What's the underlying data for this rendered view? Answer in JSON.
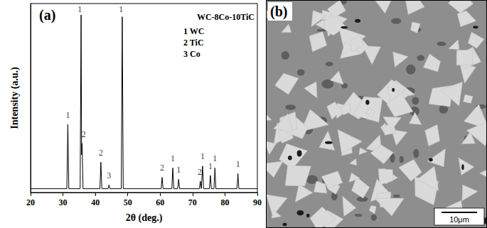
{
  "chart_data": {
    "type": "line",
    "title": "(a)",
    "subtitle": "WC-8Co-10TiC",
    "key": [
      "1 WC",
      "2 TiC",
      "3 Co"
    ],
    "x_label": "2θ (deg.)",
    "y_label": "Intensity (a.u.)",
    "x": [
      20,
      31.2,
      31.5,
      31.8,
      35.3,
      35.6,
      35.75,
      35.9,
      36.2,
      41.4,
      41.7,
      42.0,
      43.9,
      44.2,
      44.5,
      48.0,
      48.3,
      48.6,
      60.3,
      60.6,
      60.9,
      63.6,
      63.9,
      64.2,
      65.4,
      65.7,
      66.0,
      72.1,
      72.4,
      72.7,
      72.8,
      73.1,
      73.4,
      75.2,
      75.5,
      75.8,
      76.6,
      76.9,
      77.2,
      83.7,
      84.0,
      84.3,
      90
    ],
    "values": [
      2,
      2,
      36,
      2,
      2,
      94,
      20,
      26,
      2,
      2,
      16,
      2,
      2,
      4,
      2,
      2,
      93,
      2,
      2,
      8,
      2,
      2,
      13,
      2,
      2,
      7,
      2,
      2,
      6,
      2,
      2,
      14,
      2,
      2,
      9,
      2,
      2,
      13,
      2,
      2,
      10,
      2,
      2
    ],
    "color": "#000000",
    "annotations": [
      {
        "x": 31.5,
        "y": 41,
        "text": "1"
      },
      {
        "x": 35.2,
        "y": 97,
        "text": "1"
      },
      {
        "x": 36.4,
        "y": 31,
        "text": "2"
      },
      {
        "x": 41.7,
        "y": 21,
        "text": "2"
      },
      {
        "x": 44.2,
        "y": 9,
        "text": "3"
      },
      {
        "x": 47.9,
        "y": 97,
        "text": "1"
      },
      {
        "x": 60.6,
        "y": 13,
        "text": "2"
      },
      {
        "x": 63.9,
        "y": 18,
        "text": "1"
      },
      {
        "x": 65.7,
        "y": 12,
        "text": "1"
      },
      {
        "x": 72.2,
        "y": 11,
        "text": "2"
      },
      {
        "x": 73.1,
        "y": 19,
        "text": "1"
      },
      {
        "x": 75.5,
        "y": 14,
        "text": "1"
      },
      {
        "x": 76.9,
        "y": 18,
        "text": "1"
      },
      {
        "x": 84.0,
        "y": 15,
        "text": "1"
      }
    ],
    "xlim": [
      20,
      90
    ],
    "xticks": [
      20,
      30,
      40,
      50,
      60,
      70,
      80,
      90
    ],
    "ylim": [
      0,
      100
    ],
    "yticks": [],
    "tick_labels": "x",
    "grid": false
  },
  "micrograph": {
    "label": "(b)",
    "scale_bar": "10μm"
  }
}
